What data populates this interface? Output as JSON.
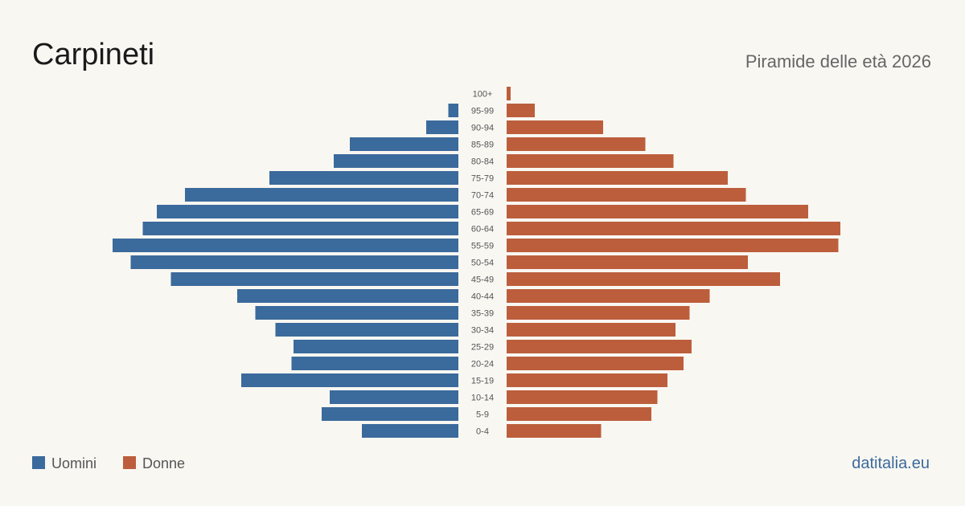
{
  "chart_data": {
    "type": "pyramid",
    "title": "Carpineti",
    "subtitle": "Piramide delle età 2026",
    "source": "datitalia.eu",
    "categories": [
      "100+",
      "95-99",
      "90-94",
      "85-89",
      "80-84",
      "75-79",
      "70-74",
      "65-69",
      "60-64",
      "55-59",
      "50-54",
      "45-49",
      "40-44",
      "35-39",
      "30-34",
      "25-29",
      "20-24",
      "15-19",
      "10-14",
      "5-9",
      "0-4"
    ],
    "series": [
      {
        "name": "Uomini",
        "color": "#3b6a9c",
        "values": [
          0,
          5,
          16,
          54,
          62,
          94,
          136,
          150,
          157,
          172,
          163,
          143,
          110,
          101,
          91,
          82,
          83,
          108,
          64,
          68,
          48
        ]
      },
      {
        "name": "Donne",
        "color": "#bc5e3c",
        "values": [
          2,
          14,
          48,
          69,
          83,
          110,
          119,
          150,
          166,
          165,
          120,
          136,
          101,
          91,
          84,
          92,
          88,
          80,
          75,
          72,
          47
        ]
      }
    ],
    "xlim": [
      0,
      172
    ]
  }
}
